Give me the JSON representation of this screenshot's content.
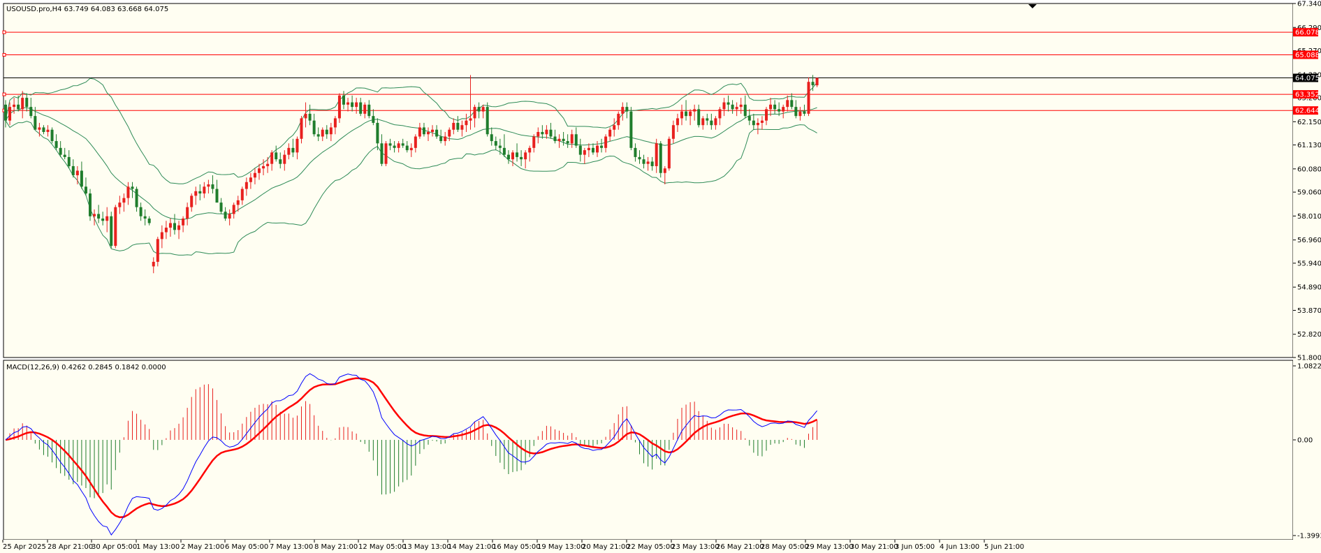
{
  "window": {
    "symbol_label": "USOUSD.pro,H4  63.749 64.083 63.668 64.075",
    "macd_label": "MACD(12,26,9) 0.4262 0.2845 0.1842 0.0000"
  },
  "colors": {
    "background": "#fffef2",
    "frame": "#000000",
    "bull_candle": "#e8201e",
    "bear_candle": "#1f7d2c",
    "bollinger": "#2e8b57",
    "level_red": "#ff0000",
    "current_price_line": "#000000",
    "macd_main": "#0000ff",
    "macd_signal": "#ff0000",
    "hist_pos": "#e8201e",
    "hist_neg": "#1f7d2c"
  },
  "chart_data": [
    {
      "type": "candlestick",
      "title": "USOUSD.pro,H4",
      "ohlc_header": {
        "open": 63.749,
        "high": 64.083,
        "low": 63.668,
        "close": 64.075
      },
      "ylim": [
        51.8,
        67.34
      ],
      "price_ticks": [
        "67.340",
        "66.290",
        "65.270",
        "64.220",
        "63.200",
        "62.150",
        "61.130",
        "60.080",
        "59.060",
        "58.010",
        "56.960",
        "55.940",
        "54.890",
        "53.870",
        "52.820",
        "51.800"
      ],
      "price_tick_values": [
        67.34,
        66.29,
        65.27,
        64.22,
        63.2,
        62.15,
        61.13,
        60.08,
        59.06,
        58.01,
        56.96,
        55.94,
        54.89,
        53.87,
        52.82,
        51.8
      ],
      "time_labels": [
        "25 Apr 2025",
        "28 Apr 21:00",
        "30 Apr 05:00",
        "1 May 13:00",
        "2 May 21:00",
        "6 May 05:00",
        "7 May 13:00",
        "8 May 21:00",
        "12 May 05:00",
        "13 May 13:00",
        "14 May 21:00",
        "16 May 05:00",
        "19 May 13:00",
        "20 May 21:00",
        "22 May 05:00",
        "23 May 13:00",
        "26 May 21:00",
        "28 May 05:00",
        "29 May 13:00",
        "30 May 21:00",
        "3 Jun 05:00",
        "4 Jun 13:00",
        "5 Jun 21:00"
      ],
      "horizontal_levels": [
        {
          "value": 66.078,
          "label": "66.078",
          "color": "#ff0000"
        },
        {
          "value": 65.088,
          "label": "65.088",
          "color": "#ff0000"
        },
        {
          "value": 63.352,
          "label": "63.352",
          "color": "#ff0000"
        },
        {
          "value": 62.644,
          "label": "62.644",
          "color": "#ff0000"
        }
      ],
      "current_price": {
        "value": 64.075,
        "label": "64.075"
      },
      "bars": [
        [
          62.9,
          63.1,
          61.9,
          62.2
        ],
        [
          62.2,
          63.0,
          62.0,
          62.8
        ],
        [
          62.8,
          63.2,
          62.5,
          62.9
        ],
        [
          62.9,
          63.3,
          62.6,
          62.7
        ],
        [
          62.7,
          63.5,
          62.3,
          63.2
        ],
        [
          63.2,
          63.4,
          62.6,
          62.8
        ],
        [
          62.8,
          63.2,
          62.3,
          62.4
        ],
        [
          62.4,
          62.8,
          61.9,
          61.8
        ],
        [
          61.8,
          62.1,
          61.5,
          61.9
        ],
        [
          61.9,
          62.0,
          61.6,
          61.7
        ],
        [
          61.7,
          62.0,
          61.5,
          61.8
        ],
        [
          61.8,
          61.9,
          61.2,
          61.3
        ],
        [
          61.3,
          61.6,
          60.9,
          61.0
        ],
        [
          61.0,
          61.3,
          60.6,
          60.7
        ],
        [
          60.7,
          61.0,
          60.5,
          60.6
        ],
        [
          60.6,
          60.9,
          60.1,
          60.2
        ],
        [
          60.2,
          60.5,
          59.7,
          59.8
        ],
        [
          59.8,
          60.2,
          59.4,
          60.0
        ],
        [
          60.0,
          60.4,
          59.2,
          59.3
        ],
        [
          59.3,
          59.7,
          58.9,
          59.0
        ],
        [
          59.0,
          59.2,
          57.8,
          58.0
        ],
        [
          58.0,
          58.3,
          57.6,
          58.1
        ],
        [
          58.1,
          58.5,
          57.7,
          57.9
        ],
        [
          57.9,
          58.2,
          57.6,
          57.8
        ],
        [
          57.8,
          58.4,
          57.3,
          58.0
        ],
        [
          58.0,
          58.2,
          56.6,
          56.7
        ],
        [
          56.7,
          58.5,
          56.6,
          58.4
        ],
        [
          58.4,
          58.9,
          58.1,
          58.6
        ],
        [
          58.6,
          59.0,
          58.2,
          58.8
        ],
        [
          58.8,
          59.5,
          58.5,
          59.3
        ],
        [
          59.3,
          59.5,
          58.8,
          59.2
        ],
        [
          59.2,
          59.3,
          58.2,
          58.4
        ],
        [
          58.4,
          58.6,
          57.8,
          58.0
        ],
        [
          58.0,
          58.3,
          57.6,
          57.9
        ],
        [
          57.9,
          58.0,
          57.6,
          57.7
        ],
        [
          55.8,
          56.2,
          55.5,
          56.0
        ],
        [
          56.0,
          57.1,
          55.8,
          57.0
        ],
        [
          57.0,
          57.6,
          56.6,
          57.3
        ],
        [
          57.3,
          57.8,
          57.0,
          57.5
        ],
        [
          57.5,
          57.9,
          57.1,
          57.7
        ],
        [
          57.7,
          58.1,
          57.2,
          57.4
        ],
        [
          57.4,
          57.8,
          57.0,
          57.6
        ],
        [
          57.6,
          58.0,
          57.3,
          57.9
        ],
        [
          57.9,
          58.6,
          57.6,
          58.4
        ],
        [
          58.4,
          59.0,
          58.2,
          58.9
        ],
        [
          58.9,
          59.3,
          58.5,
          59.1
        ],
        [
          59.1,
          59.4,
          58.7,
          59.0
        ],
        [
          59.0,
          59.5,
          58.8,
          59.3
        ],
        [
          59.3,
          59.6,
          59.0,
          59.4
        ],
        [
          59.4,
          59.8,
          59.0,
          59.2
        ],
        [
          59.2,
          59.6,
          58.7,
          58.6
        ],
        [
          58.6,
          58.8,
          58.1,
          58.2
        ],
        [
          58.2,
          58.4,
          57.8,
          57.9
        ],
        [
          57.9,
          58.3,
          57.6,
          58.1
        ],
        [
          58.1,
          58.6,
          57.9,
          58.5
        ],
        [
          58.5,
          58.9,
          58.2,
          58.7
        ],
        [
          58.7,
          59.3,
          58.5,
          59.2
        ],
        [
          59.2,
          59.7,
          58.9,
          59.5
        ],
        [
          59.5,
          59.9,
          59.2,
          59.7
        ],
        [
          59.7,
          60.1,
          59.4,
          59.9
        ],
        [
          59.9,
          60.3,
          59.6,
          60.1
        ],
        [
          60.1,
          60.5,
          59.8,
          60.2
        ],
        [
          60.2,
          60.6,
          59.9,
          60.3
        ],
        [
          60.3,
          60.9,
          60.0,
          60.8
        ],
        [
          60.8,
          61.1,
          60.4,
          60.5
        ],
        [
          60.5,
          60.8,
          60.1,
          60.3
        ],
        [
          60.3,
          60.9,
          60.0,
          60.7
        ],
        [
          60.7,
          61.2,
          60.5,
          61.0
        ],
        [
          61.0,
          61.4,
          60.6,
          60.8
        ],
        [
          60.8,
          61.5,
          60.5,
          61.4
        ],
        [
          61.4,
          62.4,
          61.2,
          62.3
        ],
        [
          62.3,
          63.0,
          61.9,
          62.5
        ],
        [
          62.5,
          62.9,
          62.0,
          62.2
        ],
        [
          62.2,
          62.5,
          61.5,
          61.6
        ],
        [
          61.6,
          61.9,
          61.3,
          61.5
        ],
        [
          61.5,
          61.9,
          61.3,
          61.8
        ],
        [
          61.8,
          62.0,
          61.4,
          61.6
        ],
        [
          61.6,
          62.1,
          61.3,
          61.9
        ],
        [
          61.9,
          62.4,
          61.6,
          62.3
        ],
        [
          62.3,
          63.4,
          62.1,
          63.3
        ],
        [
          63.3,
          63.5,
          62.7,
          62.9
        ],
        [
          62.9,
          63.2,
          62.6,
          63.0
        ],
        [
          63.0,
          63.3,
          62.6,
          62.8
        ],
        [
          62.8,
          63.2,
          62.5,
          63.0
        ],
        [
          63.0,
          63.2,
          62.4,
          62.5
        ],
        [
          62.5,
          63.0,
          62.3,
          62.9
        ],
        [
          62.9,
          63.1,
          62.3,
          62.4
        ],
        [
          62.4,
          62.7,
          62.0,
          62.1
        ],
        [
          62.1,
          62.3,
          60.9,
          61.2
        ],
        [
          61.2,
          61.6,
          60.2,
          60.3
        ],
        [
          60.3,
          61.3,
          60.2,
          61.2
        ],
        [
          61.2,
          61.4,
          60.9,
          61.1
        ],
        [
          61.1,
          61.3,
          60.8,
          61.0
        ],
        [
          61.0,
          61.3,
          60.8,
          61.2
        ],
        [
          61.2,
          61.4,
          61.0,
          61.1
        ],
        [
          61.1,
          61.3,
          60.8,
          60.9
        ],
        [
          60.9,
          61.2,
          60.6,
          61.0
        ],
        [
          61.0,
          61.6,
          60.8,
          61.5
        ],
        [
          61.5,
          62.1,
          61.4,
          61.9
        ],
        [
          61.9,
          62.1,
          61.5,
          61.6
        ],
        [
          61.6,
          61.9,
          61.3,
          61.7
        ],
        [
          61.7,
          62.0,
          61.5,
          61.8
        ],
        [
          61.8,
          62.0,
          61.4,
          61.5
        ],
        [
          61.5,
          61.8,
          61.2,
          61.3
        ],
        [
          61.3,
          61.7,
          61.1,
          61.5
        ],
        [
          61.5,
          61.9,
          61.3,
          61.8
        ],
        [
          61.8,
          62.3,
          61.6,
          62.1
        ],
        [
          62.1,
          62.4,
          61.7,
          61.8
        ],
        [
          61.8,
          62.2,
          61.5,
          62.0
        ],
        [
          62.0,
          62.5,
          61.7,
          62.2
        ],
        [
          62.2,
          64.2,
          61.8,
          62.3
        ],
        [
          62.3,
          62.9,
          61.9,
          62.8
        ],
        [
          62.8,
          63.0,
          62.3,
          62.6
        ],
        [
          62.6,
          62.9,
          62.3,
          62.8
        ],
        [
          62.8,
          63.0,
          61.5,
          61.6
        ],
        [
          61.6,
          61.9,
          61.1,
          61.3
        ],
        [
          61.3,
          61.5,
          60.9,
          61.1
        ],
        [
          61.1,
          61.4,
          60.7,
          61.0
        ],
        [
          61.0,
          61.6,
          60.6,
          60.7
        ],
        [
          60.7,
          60.9,
          60.3,
          60.5
        ],
        [
          60.5,
          60.9,
          60.2,
          60.8
        ],
        [
          60.8,
          61.2,
          60.4,
          60.6
        ],
        [
          60.6,
          60.9,
          60.2,
          60.5
        ],
        [
          60.5,
          60.9,
          60.1,
          60.8
        ],
        [
          60.8,
          61.1,
          60.4,
          61.0
        ],
        [
          61.0,
          61.6,
          60.8,
          61.5
        ],
        [
          61.5,
          61.9,
          61.2,
          61.7
        ],
        [
          61.7,
          62.0,
          61.4,
          61.6
        ],
        [
          61.6,
          62.0,
          61.4,
          61.8
        ],
        [
          61.8,
          62.1,
          61.4,
          61.5
        ],
        [
          61.5,
          61.8,
          61.2,
          61.3
        ],
        [
          61.3,
          61.6,
          61.0,
          61.4
        ],
        [
          61.4,
          61.7,
          61.1,
          61.3
        ],
        [
          61.3,
          61.6,
          61.0,
          61.2
        ],
        [
          61.2,
          61.8,
          61.0,
          61.6
        ],
        [
          61.6,
          61.9,
          61.0,
          61.1
        ],
        [
          61.1,
          61.4,
          60.4,
          60.7
        ],
        [
          60.7,
          61.0,
          60.3,
          60.9
        ],
        [
          60.9,
          61.2,
          60.6,
          61.0
        ],
        [
          61.0,
          61.2,
          60.7,
          60.8
        ],
        [
          60.8,
          61.3,
          60.6,
          61.1
        ],
        [
          61.1,
          61.4,
          60.8,
          61.0
        ],
        [
          61.0,
          61.6,
          60.8,
          61.5
        ],
        [
          61.5,
          61.9,
          61.3,
          61.8
        ],
        [
          61.8,
          62.3,
          61.5,
          62.0
        ],
        [
          62.0,
          62.6,
          61.8,
          62.5
        ],
        [
          62.5,
          63.0,
          62.2,
          62.8
        ],
        [
          62.8,
          63.0,
          62.3,
          62.6
        ],
        [
          62.6,
          62.8,
          60.9,
          61.0
        ],
        [
          61.0,
          61.2,
          60.4,
          60.6
        ],
        [
          60.6,
          60.9,
          60.3,
          60.5
        ],
        [
          60.5,
          60.7,
          60.1,
          60.3
        ],
        [
          60.3,
          60.6,
          60.0,
          60.4
        ],
        [
          60.4,
          60.6,
          60.0,
          60.2
        ],
        [
          60.2,
          61.4,
          59.9,
          61.2
        ],
        [
          61.2,
          61.3,
          59.7,
          59.9
        ],
        [
          59.9,
          60.2,
          59.4,
          60.1
        ],
        [
          60.1,
          61.5,
          60.0,
          61.4
        ],
        [
          61.4,
          62.2,
          61.2,
          62.0
        ],
        [
          62.0,
          62.5,
          61.7,
          62.3
        ],
        [
          62.3,
          62.9,
          62.0,
          62.6
        ],
        [
          62.6,
          63.1,
          62.2,
          62.4
        ],
        [
          62.4,
          62.7,
          62.0,
          62.6
        ],
        [
          62.6,
          62.9,
          62.2,
          62.7
        ],
        [
          62.7,
          62.9,
          61.9,
          62.0
        ],
        [
          62.0,
          62.4,
          61.8,
          62.3
        ],
        [
          62.3,
          62.5,
          62.0,
          62.2
        ],
        [
          62.2,
          62.5,
          61.8,
          62.0
        ],
        [
          62.0,
          62.4,
          61.8,
          62.3
        ],
        [
          62.3,
          62.8,
          62.0,
          62.7
        ],
        [
          62.7,
          63.2,
          62.4,
          63.0
        ],
        [
          63.0,
          63.3,
          62.6,
          62.9
        ],
        [
          62.9,
          63.1,
          62.5,
          62.7
        ],
        [
          62.7,
          63.0,
          62.4,
          62.8
        ],
        [
          62.8,
          63.2,
          62.5,
          62.9
        ],
        [
          62.9,
          63.3,
          62.3,
          62.4
        ],
        [
          62.4,
          62.7,
          62.0,
          62.2
        ],
        [
          62.2,
          62.5,
          61.8,
          62.0
        ],
        [
          62.0,
          62.3,
          61.6,
          62.1
        ],
        [
          62.1,
          62.4,
          61.8,
          62.2
        ],
        [
          62.2,
          62.8,
          62.0,
          62.7
        ],
        [
          62.7,
          63.2,
          62.4,
          62.9
        ],
        [
          62.9,
          63.1,
          62.5,
          62.7
        ],
        [
          62.7,
          63.0,
          62.4,
          62.6
        ],
        [
          62.6,
          62.9,
          62.3,
          62.8
        ],
        [
          62.8,
          63.3,
          62.6,
          63.1
        ],
        [
          63.1,
          63.4,
          62.7,
          62.8
        ],
        [
          62.8,
          63.1,
          62.3,
          62.4
        ],
        [
          62.4,
          62.8,
          62.2,
          62.6
        ],
        [
          62.6,
          62.9,
          62.4,
          62.5
        ],
        [
          62.5,
          64.1,
          62.4,
          63.9
        ],
        [
          63.9,
          64.2,
          63.5,
          63.749
        ],
        [
          63.749,
          64.083,
          63.668,
          64.075
        ]
      ],
      "bollinger": {
        "period": 20
      }
    },
    {
      "type": "line",
      "title": "MACD(12,26,9) 0.4262 0.2845 0.1842 0.0000",
      "ylim": [
        -1.3993,
        1.0822
      ],
      "y_ticks": [
        "1.0822",
        "0.00",
        "-1.3993"
      ],
      "y_tick_values": [
        1.0822,
        0.0,
        -1.3993
      ],
      "series": [
        {
          "name": "MACD",
          "values_from": "computed"
        },
        {
          "name": "Signal",
          "values_from": "computed"
        }
      ],
      "last_values": {
        "macd": 0.4262,
        "signal": 0.2845,
        "hist": 0.1842
      }
    }
  ]
}
